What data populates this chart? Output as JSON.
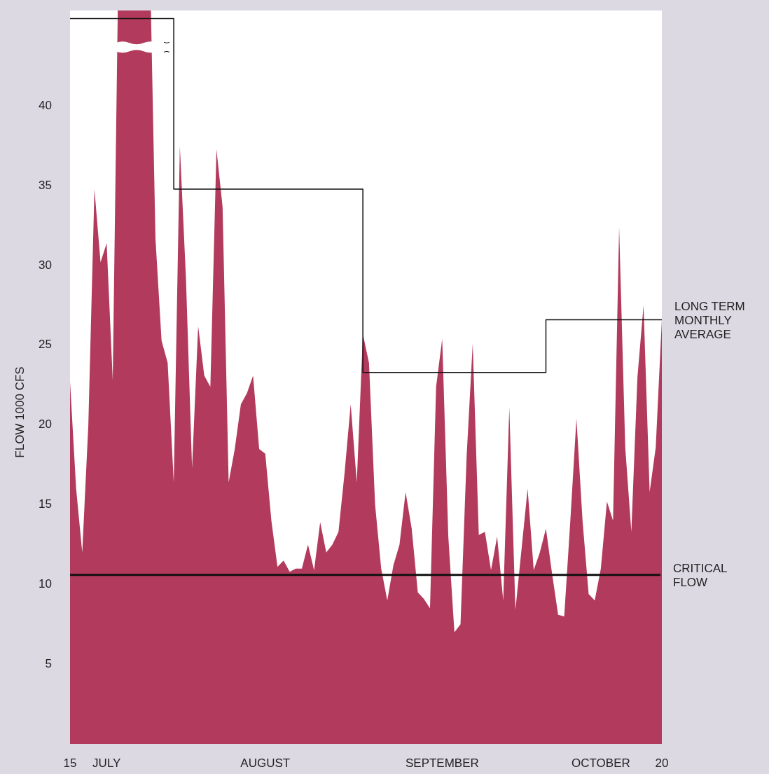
{
  "chart_data": {
    "type": "area",
    "ylabel": "FLOW 1000 CFS",
    "xlim": [
      "--07-15",
      "--10-20"
    ],
    "xticks": [
      {
        "value": "--07-15",
        "label": "15"
      },
      {
        "value": "--07-21",
        "label": "JULY"
      },
      {
        "value": "--08-16",
        "label": "AUGUST"
      },
      {
        "value": "--09-14",
        "label": "SEPTEMBER"
      },
      {
        "value": "--10-10",
        "label": "OCTOBER"
      },
      {
        "value": "--10-20",
        "label": "20"
      }
    ],
    "ylim": [
      0,
      46
    ],
    "yticks": [
      5,
      10,
      15,
      20,
      25,
      30,
      35,
      40
    ],
    "grid": false,
    "series": [
      {
        "color": "#b23a5c",
        "x": [
          "--07-15",
          "--07-16",
          "--07-17",
          "--07-18",
          "--07-19",
          "--07-20",
          "--07-21",
          "--07-22",
          "--07-23",
          "--07-24",
          "--07-25",
          "--07-26",
          "--07-27",
          "--07-28",
          "--07-29",
          "--07-30",
          "--07-31",
          "--08-01",
          "--08-02",
          "--08-03",
          "--08-04",
          "--08-05",
          "--08-06",
          "--08-07",
          "--08-08",
          "--08-09",
          "--08-10",
          "--08-11",
          "--08-12",
          "--08-13",
          "--08-14",
          "--08-15",
          "--08-16",
          "--08-17",
          "--08-18",
          "--08-19",
          "--08-20",
          "--08-21",
          "--08-22",
          "--08-23",
          "--08-24",
          "--08-25",
          "--08-26",
          "--08-27",
          "--08-28",
          "--08-29",
          "--08-30",
          "--08-31",
          "--09-01",
          "--09-02",
          "--09-03",
          "--09-04",
          "--09-05",
          "--09-06",
          "--09-07",
          "--09-08",
          "--09-09",
          "--09-10",
          "--09-11",
          "--09-12",
          "--09-13",
          "--09-14",
          "--09-15",
          "--09-16",
          "--09-17",
          "--09-18",
          "--09-19",
          "--09-20",
          "--09-21",
          "--09-22",
          "--09-23",
          "--09-24",
          "--09-25",
          "--09-26",
          "--09-27",
          "--09-28",
          "--09-29",
          "--09-30",
          "--10-01",
          "--10-02",
          "--10-03",
          "--10-04",
          "--10-05",
          "--10-06",
          "--10-07",
          "--10-08",
          "--10-09",
          "--10-10",
          "--10-11",
          "--10-12",
          "--10-13",
          "--10-14",
          "--10-15",
          "--10-16",
          "--10-17",
          "--10-18",
          "--10-19",
          "--10-20"
        ],
        "values": [
          22.7,
          16,
          12,
          20,
          34.8,
          30.2,
          31.4,
          22.8,
          null,
          null,
          null,
          null,
          null,
          null,
          31.7,
          25.3,
          23.9,
          16.4,
          37.5,
          29.2,
          17.3,
          26.2,
          23.1,
          22.4,
          37.3,
          33.7,
          16.4,
          18.5,
          21.3,
          22,
          23.1,
          18.5,
          18.2,
          14,
          11.1,
          11.5,
          10.8,
          11,
          11,
          12.5,
          10.9,
          13.9,
          12,
          12.5,
          13.3,
          17,
          21.3,
          16.4,
          25.7,
          23.9,
          15,
          11,
          9,
          11.2,
          12.5,
          15.8,
          13.5,
          9.5,
          9.1,
          8.5,
          22.4,
          25.4,
          13,
          7,
          7.5,
          18,
          25.1,
          13.1,
          13.3,
          10.9,
          13,
          9,
          21.1,
          8.4,
          12.2,
          16,
          10.9,
          12,
          13.5,
          10.7,
          8.1,
          8,
          14,
          20.4,
          14,
          9.4,
          9,
          11,
          15.2,
          14,
          32.4,
          18.6,
          13.3,
          23,
          27.5,
          15.8,
          18.6,
          26.6
        ]
      },
      {
        "type": "step",
        "name": "LONG TERM MONTHLY AVERAGE",
        "color": "#111111",
        "x": [
          "--07-15",
          "--08-01",
          "--09-01",
          "--10-01",
          "--10-20"
        ],
        "values": [
          45.5,
          34.8,
          23.3,
          26.6,
          26.6
        ]
      }
    ],
    "ref_lines": [
      {
        "axis": "y",
        "value": 10.6,
        "label": "CRITICAL FLOW",
        "color": "#111111"
      }
    ]
  }
}
